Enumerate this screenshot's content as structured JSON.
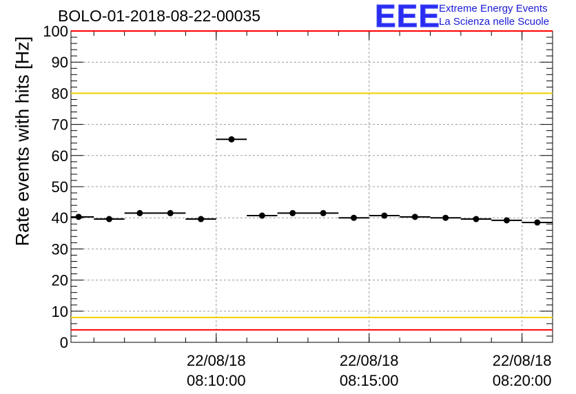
{
  "chart_data": {
    "type": "scatter",
    "title": "BOLO-01-2018-08-22-00035",
    "ylabel": "Rate events with hits [Hz]",
    "xlabel": "",
    "ylim": [
      0,
      100
    ],
    "yticks": [
      0,
      10,
      20,
      30,
      40,
      50,
      60,
      70,
      80,
      90,
      100
    ],
    "xlim": [
      "2018-08-22 08:05:15",
      "2018-08-22 08:21:00"
    ],
    "xticks": [
      {
        "value": "2018-08-22 08:10:00",
        "label_date": "22/08/18",
        "label_time": "08:10:00"
      },
      {
        "value": "2018-08-22 08:15:00",
        "label_date": "22/08/18",
        "label_time": "08:15:00"
      },
      {
        "value": "2018-08-22 08:20:00",
        "label_date": "22/08/18",
        "label_time": "08:20:00"
      }
    ],
    "grid": true,
    "series": [
      {
        "points": [
          {
            "x": "2018-08-22 08:05:30",
            "y": 40.3
          },
          {
            "x": "2018-08-22 08:06:30",
            "y": 39.6
          },
          {
            "x": "2018-08-22 08:07:30",
            "y": 41.5
          },
          {
            "x": "2018-08-22 08:08:30",
            "y": 41.5
          },
          {
            "x": "2018-08-22 08:09:30",
            "y": 39.6
          },
          {
            "x": "2018-08-22 08:10:30",
            "y": 65.2
          },
          {
            "x": "2018-08-22 08:11:30",
            "y": 40.7
          },
          {
            "x": "2018-08-22 08:12:30",
            "y": 41.5
          },
          {
            "x": "2018-08-22 08:13:30",
            "y": 41.5
          },
          {
            "x": "2018-08-22 08:14:30",
            "y": 40.0
          },
          {
            "x": "2018-08-22 08:15:30",
            "y": 40.7
          },
          {
            "x": "2018-08-22 08:16:30",
            "y": 40.3
          },
          {
            "x": "2018-08-22 08:17:30",
            "y": 40.0
          },
          {
            "x": "2018-08-22 08:18:30",
            "y": 39.6
          },
          {
            "x": "2018-08-22 08:19:30",
            "y": 39.2
          },
          {
            "x": "2018-08-22 08:20:30",
            "y": 38.5
          }
        ],
        "bin_width_seconds": 60,
        "color": "#000000"
      }
    ],
    "reference_lines": [
      {
        "y": 80,
        "color": "#f0d000"
      },
      {
        "y": 8,
        "color": "#f0d000"
      },
      {
        "y": 4,
        "color": "#ff0000"
      },
      {
        "y": 100,
        "color": "#ff0000"
      }
    ]
  },
  "logo": {
    "mark": "EEE",
    "line1": "Extreme Energy Events",
    "line2": "La Scienza nelle Scuole",
    "color": "#1a1ad8"
  }
}
